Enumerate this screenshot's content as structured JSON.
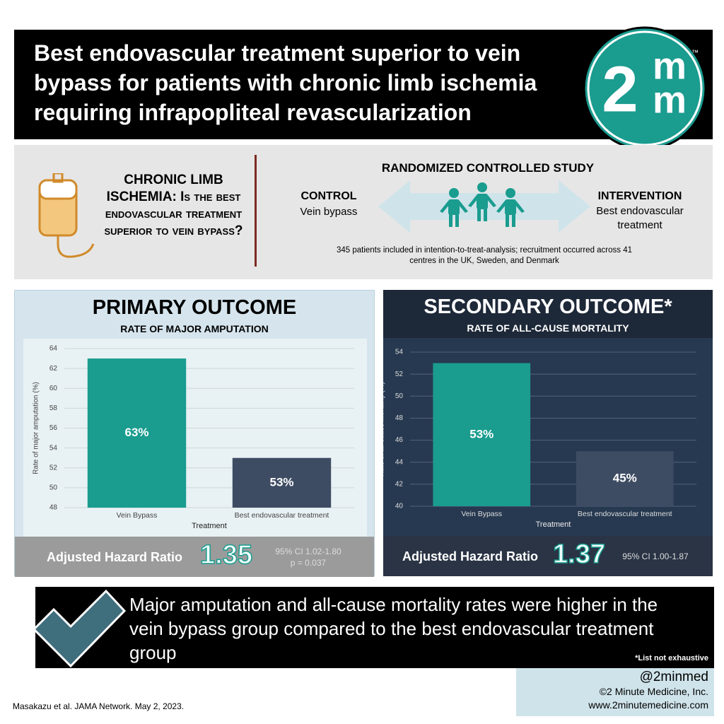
{
  "header": {
    "title": "Best endovascular treatment superior to vein bypass for patients with chronic limb ischemia requiring infrapopliteal revascularization"
  },
  "logo": {
    "digit": "2",
    "letters": [
      "m",
      "m"
    ],
    "tm": "™"
  },
  "study": {
    "question": "CHRONIC LIMB ISCHEMIA: Is the best endovascular treatment superior to vein bypass?",
    "design": "RANDOMIZED CONTROLLED STUDY",
    "control_label": "CONTROL",
    "control": "Vein bypass",
    "intervention_label": "INTERVENTION",
    "intervention": "Best endovascular treatment",
    "note": "345 patients included in intention-to-treat-analysis; recruitment occurred across 41 centres in the UK, Sweden, and Denmark"
  },
  "chart_data": [
    {
      "type": "bar",
      "title": "PRIMARY OUTCOME",
      "subtitle": "RATE OF MAJOR AMPUTATION",
      "categories": [
        "Vein Bypass",
        "Best endovascular treatment"
      ],
      "values": [
        63,
        53
      ],
      "value_labels": [
        "63%",
        "53%"
      ],
      "colors": [
        "#1a9c8f",
        "#3e4c63"
      ],
      "xlabel": "Treatment",
      "ylabel": "Rate of major amputation (%)",
      "ylim": [
        48,
        64
      ],
      "yticks": [
        48,
        50,
        52,
        54,
        56,
        58,
        60,
        62,
        64
      ],
      "grid": true
    },
    {
      "type": "bar",
      "title": "SECONDARY OUTCOME*",
      "subtitle": "RATE OF ALL-CAUSE MORTALITY",
      "categories": [
        "Vein Bypass",
        "Best endovascular treatment"
      ],
      "values": [
        53,
        45
      ],
      "value_labels": [
        "53%",
        "45%"
      ],
      "colors": [
        "#1a9c8f",
        "#3e4c63"
      ],
      "xlabel": "Treatment",
      "ylabel": "Rate of all-cause mortality (%)",
      "ylim": [
        40,
        54
      ],
      "yticks": [
        40,
        42,
        44,
        46,
        48,
        50,
        52,
        54
      ],
      "grid": true
    }
  ],
  "outcomes": [
    {
      "label": "Adjusted Hazard Ratio",
      "ratio": "1.35",
      "ci": "95% CI 1.02-1.80",
      "p": "p = 0.037"
    },
    {
      "label": "Adjusted Hazard Ratio",
      "ratio": "1.37",
      "ci": "95% CI 1.00-1.87"
    }
  ],
  "conclusion": {
    "text": "Major amputation and all-cause mortality rates were higher in the vein bypass group compared to the best endovascular treatment group",
    "footnote": "*List not exhaustive"
  },
  "footer": {
    "handle": "@2minmed",
    "company": "©2 Minute Medicine, Inc.",
    "url": "www.2minutemedicine.com",
    "citation": "Masakazu et al. JAMA Network. May 2, 2023."
  }
}
